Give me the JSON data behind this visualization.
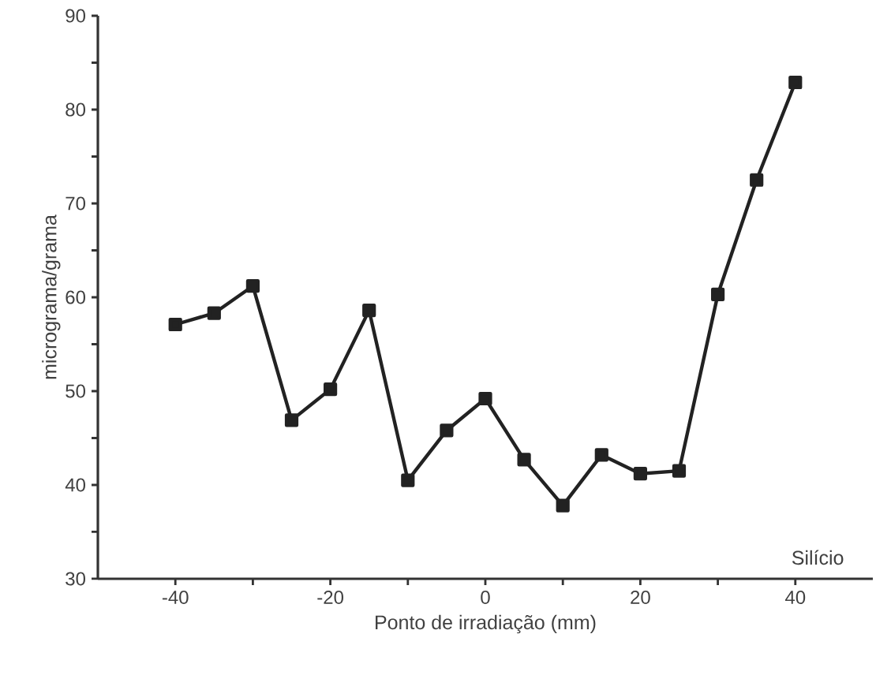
{
  "chart_data": {
    "type": "line",
    "xlabel": "Ponto de irradiação (mm)",
    "ylabel": "micrograma/grama",
    "annotations": [
      "Silício"
    ],
    "x": [
      -40,
      -35,
      -30,
      -25,
      -20,
      -15,
      -10,
      -5,
      0,
      5,
      10,
      15,
      20,
      25,
      30,
      35,
      40
    ],
    "series": [
      {
        "color": "#222222",
        "values": [
          57.1,
          58.3,
          61.2,
          46.9,
          50.2,
          58.6,
          40.5,
          45.8,
          49.2,
          42.7,
          37.8,
          43.2,
          41.2,
          41.5,
          60.3,
          72.5,
          82.9
        ]
      }
    ],
    "xlim": [
      -50,
      50
    ],
    "ylim": [
      30,
      90
    ],
    "xticks": [
      -40,
      {
        "value": -30,
        "label": null
      },
      -20,
      {
        "value": -10,
        "label": null
      },
      0,
      {
        "value": 10,
        "label": null
      },
      20,
      {
        "value": 30,
        "label": null
      },
      40
    ],
    "yticks": [
      30,
      {
        "value": 35,
        "label": null
      },
      40,
      {
        "value": 45,
        "label": null
      },
      50,
      {
        "value": 55,
        "label": null
      },
      60,
      {
        "value": 65,
        "label": null
      },
      70,
      {
        "value": 75,
        "label": null
      },
      80,
      {
        "value": 85,
        "label": null
      },
      90
    ],
    "marker": "square",
    "line_style": "solid",
    "grid": false
  }
}
